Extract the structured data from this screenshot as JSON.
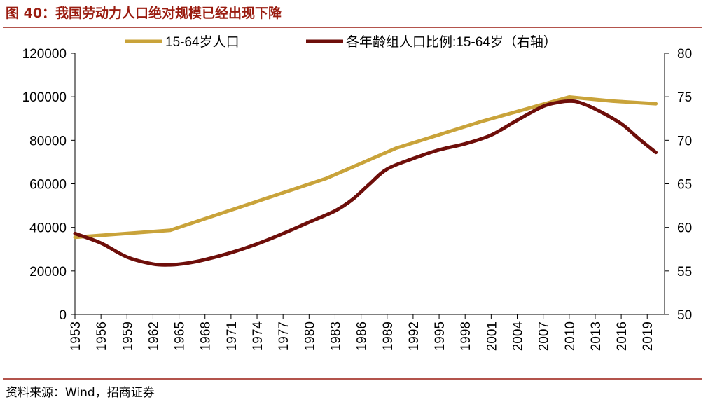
{
  "title": "图 40：我国劳动力人口绝对规模已经出现下降",
  "source": "资料来源：Wind，招商证券",
  "colors": {
    "accent": "#9a1c10",
    "series_gold": "#c9a33a",
    "series_dark": "#6e0e0a",
    "axis": "#000000"
  },
  "chart_data": {
    "type": "line",
    "x_categories": [
      "1953",
      "1956",
      "1959",
      "1962",
      "1965",
      "1968",
      "1971",
      "1974",
      "1977",
      "1980",
      "1983",
      "1986",
      "1989",
      "1992",
      "1995",
      "1998",
      "2001",
      "2004",
      "2007",
      "2010",
      "2013",
      "2016",
      "2019"
    ],
    "xlim": [
      1953,
      2021
    ],
    "left_axis": {
      "ylim": [
        0,
        120000
      ],
      "ticks": [
        "0",
        "20000",
        "40000",
        "60000",
        "80000",
        "100000",
        "120000"
      ]
    },
    "right_axis": {
      "ylim": [
        50,
        80
      ],
      "ticks": [
        "50",
        "55",
        "60",
        "65",
        "70",
        "75",
        "80"
      ]
    },
    "grid": false,
    "legend_position": "top",
    "series": [
      {
        "name": "15-64岁人口",
        "axis": "left",
        "x": [
          1953,
          1964,
          1982,
          1990,
          2000,
          2010,
          2015,
          2020
        ],
        "y": [
          35500,
          38700,
          62500,
          76300,
          88800,
          99900,
          98000,
          96800
        ]
      },
      {
        "name": "各年龄组人口比例:15-64岁（右轴）",
        "axis": "right",
        "x": [
          1953,
          1956,
          1959,
          1962,
          1964,
          1966,
          1968,
          1971,
          1974,
          1977,
          1980,
          1983,
          1985,
          1987,
          1989,
          1992,
          1995,
          1998,
          2001,
          2004,
          2007,
          2009,
          2010,
          2011,
          2013,
          2016,
          2018,
          2020
        ],
        "y": [
          59.3,
          58.2,
          56.6,
          55.8,
          55.7,
          55.9,
          56.3,
          57.1,
          58.1,
          59.3,
          60.6,
          61.9,
          63.2,
          65.0,
          66.7,
          67.9,
          68.9,
          69.6,
          70.6,
          72.3,
          73.9,
          74.4,
          74.5,
          74.4,
          73.6,
          71.9,
          70.2,
          68.6
        ]
      }
    ]
  }
}
